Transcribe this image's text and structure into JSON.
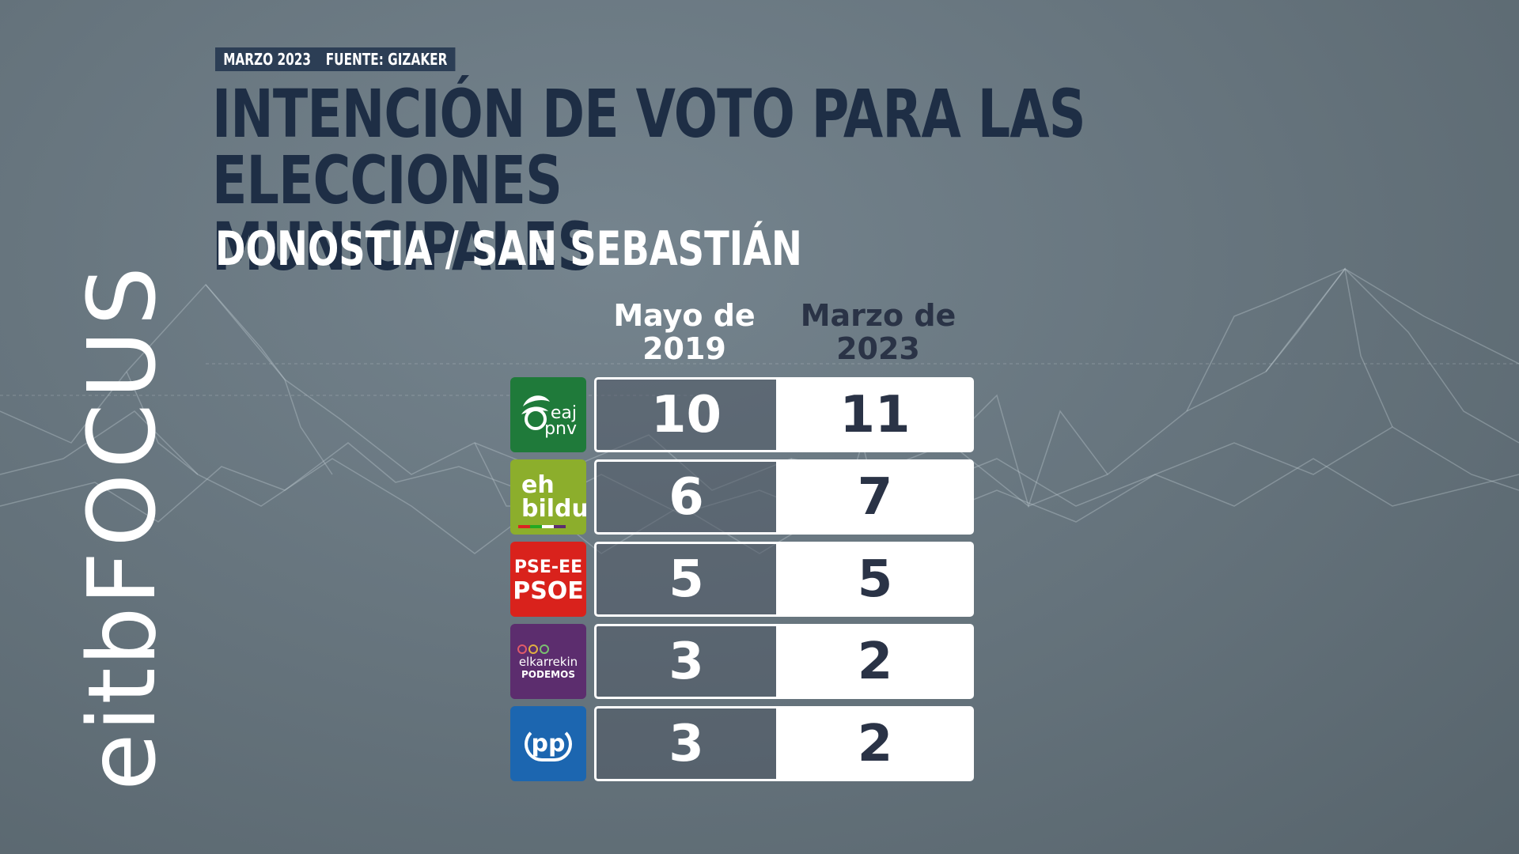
{
  "meta": {
    "date": "MARZO 2023",
    "source": "FUENTE: GIZAKER"
  },
  "title_line1": "INTENCIÓN DE VOTO PARA LAS ELECCIONES",
  "title_line2": "MUNICIPALES",
  "subtitle": "DONOSTIA / SAN SEBASTIÁN",
  "brand": {
    "part1": "eitb",
    "part2": "FOCUS"
  },
  "colors": {
    "title": "#1e2e45",
    "meta_bg": "#2c3e55",
    "pnv": "#1f7a3a",
    "bildu": "#8cae2c",
    "psoe": "#d9221c",
    "podemos": "#5c2d6e",
    "pp": "#1c66b0"
  },
  "chart_data": {
    "type": "table",
    "columns": [
      "Mayo de 2019",
      "Marzo de 2023"
    ],
    "column_lines": [
      [
        "Mayo de",
        "2019"
      ],
      [
        "Marzo de",
        "2023"
      ]
    ],
    "rows": [
      {
        "party": "EAJ-PNV",
        "logo_text": [
          "eaj",
          "pnv"
        ],
        "values": [
          10,
          11
        ]
      },
      {
        "party": "EH Bildu",
        "logo_text": [
          "eh",
          "bildu"
        ],
        "values": [
          6,
          7
        ]
      },
      {
        "party": "PSE-EE PSOE",
        "logo_text": [
          "PSE-EE",
          "PSOE"
        ],
        "values": [
          5,
          5
        ]
      },
      {
        "party": "Elkarrekin Podemos",
        "logo_text": [
          "elkarrekin",
          "PODEMOS"
        ],
        "values": [
          3,
          2
        ]
      },
      {
        "party": "PP",
        "logo_text": [
          "pp"
        ],
        "values": [
          3,
          2
        ]
      }
    ]
  }
}
